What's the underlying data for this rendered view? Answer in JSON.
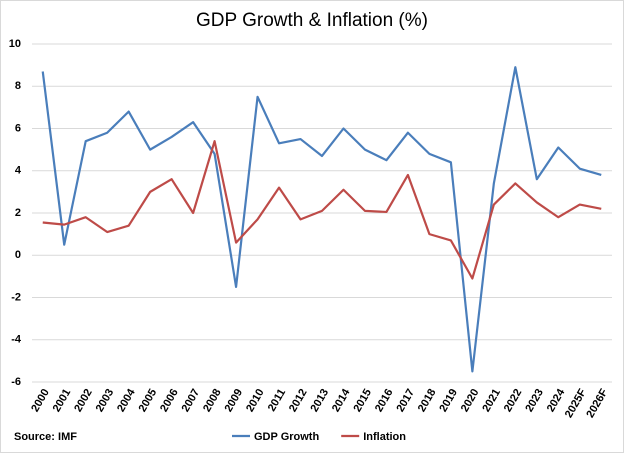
{
  "chart_data": {
    "type": "line",
    "title": "GDP Growth & Inflation (%)",
    "source": "Source: IMF",
    "categories": [
      "2000",
      "2001",
      "2002",
      "2003",
      "2004",
      "2005",
      "2006",
      "2007",
      "2008",
      "2009",
      "2010",
      "2011",
      "2012",
      "2013",
      "2014",
      "2015",
      "2016",
      "2017",
      "2018",
      "2019",
      "2020",
      "2021",
      "2022",
      "2023",
      "2024",
      "2025F",
      "2026F"
    ],
    "series": [
      {
        "name": "GDP Growth",
        "color": "#4a7ebb",
        "values": [
          8.7,
          0.5,
          5.4,
          5.8,
          6.8,
          5.0,
          5.6,
          6.3,
          4.8,
          -1.5,
          7.5,
          5.3,
          5.5,
          4.7,
          6.0,
          5.0,
          4.5,
          5.8,
          4.8,
          4.4,
          -5.5,
          3.4,
          8.9,
          3.6,
          5.1,
          4.1,
          3.8
        ]
      },
      {
        "name": "Inflation",
        "color": "#be4b48",
        "values": [
          1.55,
          1.45,
          1.8,
          1.1,
          1.4,
          3.0,
          3.6,
          2.0,
          5.4,
          0.6,
          1.7,
          3.2,
          1.7,
          2.1,
          3.1,
          2.1,
          2.05,
          3.8,
          1.0,
          0.7,
          -1.1,
          2.4,
          3.4,
          2.5,
          1.8,
          2.4,
          2.2
        ]
      }
    ],
    "ylim": [
      -6,
      10
    ],
    "yticks": [
      -6,
      -4,
      -2,
      0,
      2,
      4,
      6,
      8,
      10
    ],
    "grid": true,
    "legend": "bottom"
  }
}
